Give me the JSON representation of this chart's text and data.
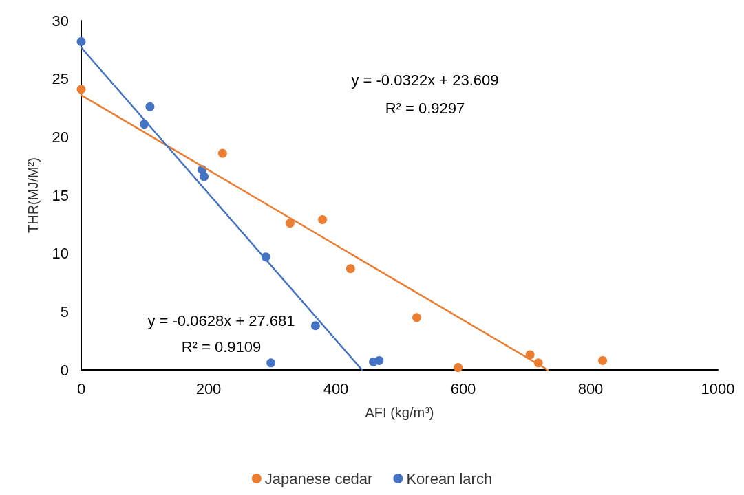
{
  "chart_data": {
    "type": "scatter",
    "xlabel": "AFI (kg/m³)",
    "ylabel": "THR(MJ/M²)",
    "xlim": [
      0,
      1000
    ],
    "xticks": [
      0,
      200,
      400,
      600,
      800,
      1000
    ],
    "ylim": [
      0,
      30
    ],
    "yticks": [
      0,
      5,
      10,
      15,
      20,
      25,
      30
    ],
    "grid": false,
    "legend": "bottom",
    "marker": "circle",
    "series": [
      {
        "name": "Japanese cedar",
        "color": "#ed7d31",
        "x": [
          0,
          222,
          328,
          379,
          423,
          527,
          592,
          705,
          718,
          819
        ],
        "values": [
          24.1,
          18.6,
          12.6,
          12.9,
          8.7,
          4.5,
          0.2,
          1.3,
          0.6,
          0.8
        ]
      },
      {
        "name": "Korean larch",
        "color": "#4472c4",
        "x": [
          0,
          108,
          99,
          190,
          193,
          290,
          368,
          298,
          459,
          468
        ],
        "values": [
          28.2,
          22.6,
          21.1,
          17.2,
          16.6,
          9.7,
          3.8,
          0.6,
          0.7,
          0.8
        ]
      },
      {
        "type": "line",
        "marker": "none",
        "color": "#ed7d31",
        "x": [
          0,
          733
        ],
        "values": [
          23.6,
          0
        ]
      },
      {
        "type": "line",
        "marker": "none",
        "color": "#4472c4",
        "x": [
          0,
          441
        ],
        "values": [
          27.7,
          0
        ]
      }
    ],
    "annotations": [
      "y = -0.0322x + 23.609",
      "R² = 0.9297",
      "y = -0.0628x + 27.681",
      "R² = 0.9109"
    ]
  }
}
